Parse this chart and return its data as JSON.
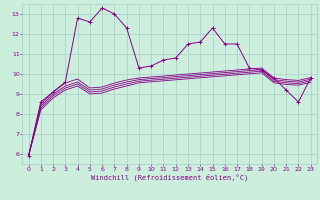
{
  "title": "",
  "xlabel": "Windchill (Refroidissement éolien,°C)",
  "bg_color": "#cceedd",
  "grid_color": "#aacccc",
  "line_color": "#880088",
  "xlim": [
    -0.5,
    23.5
  ],
  "ylim": [
    5.5,
    13.5
  ],
  "yticks": [
    6,
    7,
    8,
    9,
    10,
    11,
    12,
    13
  ],
  "xticks": [
    0,
    1,
    2,
    3,
    4,
    5,
    6,
    7,
    8,
    9,
    10,
    11,
    12,
    13,
    14,
    15,
    16,
    17,
    18,
    19,
    20,
    21,
    22,
    23
  ],
  "series0": [
    5.9,
    8.6,
    9.1,
    9.6,
    12.8,
    12.6,
    13.3,
    13.0,
    12.3,
    10.3,
    10.4,
    10.7,
    10.8,
    11.5,
    11.6,
    12.3,
    11.5,
    11.5,
    10.3,
    10.2,
    9.8,
    9.2,
    8.6,
    9.8
  ],
  "series1": [
    5.9,
    8.5,
    9.1,
    9.55,
    9.75,
    9.3,
    9.35,
    9.55,
    9.7,
    9.8,
    9.85,
    9.9,
    9.95,
    10.0,
    10.05,
    10.1,
    10.15,
    10.2,
    10.25,
    10.3,
    9.8,
    9.72,
    9.68,
    9.82
  ],
  "series2": [
    5.9,
    8.4,
    9.0,
    9.4,
    9.6,
    9.2,
    9.25,
    9.45,
    9.6,
    9.72,
    9.77,
    9.82,
    9.87,
    9.92,
    9.97,
    10.02,
    10.07,
    10.12,
    10.17,
    10.22,
    9.72,
    9.64,
    9.6,
    9.74
  ],
  "series3": [
    5.9,
    8.3,
    8.9,
    9.3,
    9.5,
    9.1,
    9.15,
    9.35,
    9.5,
    9.64,
    9.69,
    9.74,
    9.79,
    9.84,
    9.89,
    9.94,
    9.99,
    10.04,
    10.09,
    10.14,
    9.64,
    9.56,
    9.52,
    9.66
  ],
  "series4": [
    5.9,
    8.2,
    8.8,
    9.2,
    9.4,
    9.0,
    9.05,
    9.25,
    9.4,
    9.56,
    9.61,
    9.66,
    9.71,
    9.76,
    9.81,
    9.86,
    9.91,
    9.96,
    10.01,
    10.06,
    9.56,
    9.48,
    9.44,
    9.58
  ]
}
